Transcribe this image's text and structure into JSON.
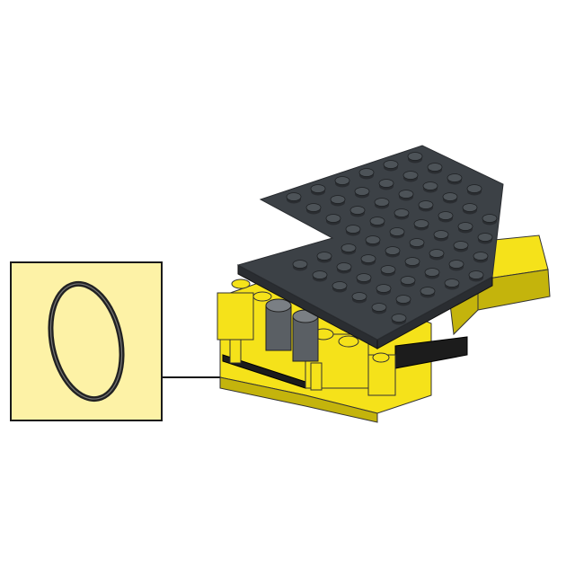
{
  "scene": {
    "type": "building-instruction-step",
    "parts_callout": {
      "background_color": "#fdf2a6",
      "border_color": "#1a1a1a",
      "part": {
        "name": "rubber-band",
        "icon": "black-ring-icon",
        "color": "#222222",
        "quantity_shown": 1
      }
    },
    "arrow": {
      "icon": "arrow-right-icon",
      "color": "#111111"
    },
    "model": {
      "plate_color": "#3c4146",
      "plate_edge_color": "#2a2d31",
      "brick_color": "#f5e21a",
      "brick_shadow_color": "#c4b40c",
      "technic_color": "#1c1c1c",
      "gray_parts_color": "#5a5f64"
    }
  }
}
